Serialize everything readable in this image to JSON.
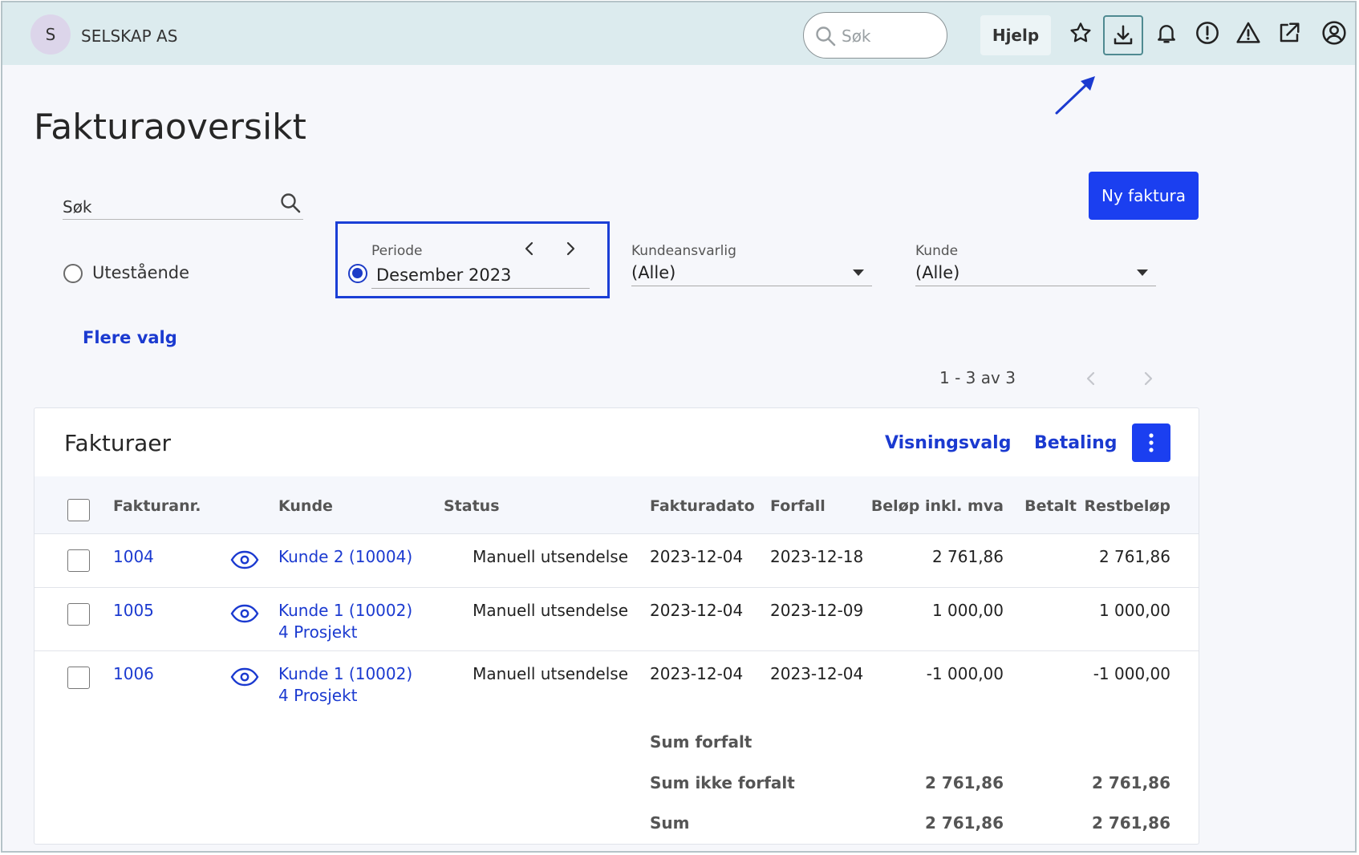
{
  "topbar": {
    "avatar_initial": "S",
    "company": "SELSKAP AS",
    "search_placeholder": "Søk",
    "help_label": "Hjelp",
    "icons": [
      "star-icon",
      "download-icon",
      "bell-icon",
      "info-alert-icon",
      "warning-icon",
      "external-link-icon",
      "user-icon"
    ]
  },
  "page": {
    "title": "Fakturaoversikt",
    "search_label": "Søk",
    "new_invoice_label": "Ny faktura"
  },
  "filters": {
    "outstanding_label": "Utestående",
    "period_label": "Periode",
    "period_value": "Desember 2023",
    "account_manager_label": "Kundeansvarlig",
    "account_manager_value": "(Alle)",
    "customer_label": "Kunde",
    "customer_value": "(Alle)",
    "more_options_label": "Flere valg"
  },
  "pagination": {
    "text": "1 - 3 av 3"
  },
  "invoices": {
    "title": "Fakturaer",
    "view_options_label": "Visningsvalg",
    "payment_label": "Betaling",
    "columns": {
      "invoice_no": "Fakturanr.",
      "customer": "Kunde",
      "status": "Status",
      "invoice_date": "Fakturadato",
      "due": "Forfall",
      "amount": "Beløp inkl. mva",
      "paid": "Betalt",
      "remaining": "Restbeløp"
    },
    "rows": [
      {
        "no": "1004",
        "customer": "Kunde 2 (10004)",
        "project": "",
        "status": "Manuell utsendelse",
        "invoice_date": "2023-12-04",
        "due": "2023-12-18",
        "amount": "2 761,86",
        "paid": "",
        "remaining": "2 761,86"
      },
      {
        "no": "1005",
        "customer": "Kunde 1 (10002)",
        "project": "4 Prosjekt",
        "status": "Manuell utsendelse",
        "invoice_date": "2023-12-04",
        "due": "2023-12-09",
        "amount": "1 000,00",
        "paid": "",
        "remaining": "1 000,00"
      },
      {
        "no": "1006",
        "customer": "Kunde 1 (10002)",
        "project": "4 Prosjekt",
        "status": "Manuell utsendelse",
        "invoice_date": "2023-12-04",
        "due": "2023-12-04",
        "amount": "-1 000,00",
        "paid": "",
        "remaining": "-1 000,00"
      }
    ],
    "sums": [
      {
        "label": "Sum forfalt",
        "amount": "",
        "remaining": ""
      },
      {
        "label": "Sum ikke forfalt",
        "amount": "2 761,86",
        "remaining": "2 761,86"
      },
      {
        "label": "Sum",
        "amount": "2 761,86",
        "remaining": "2 761,86"
      }
    ]
  },
  "colors": {
    "accent": "#1b3ff0",
    "link": "#1b3ad0",
    "topbar": "#dcebee",
    "highlight": "#1b3fd6"
  }
}
